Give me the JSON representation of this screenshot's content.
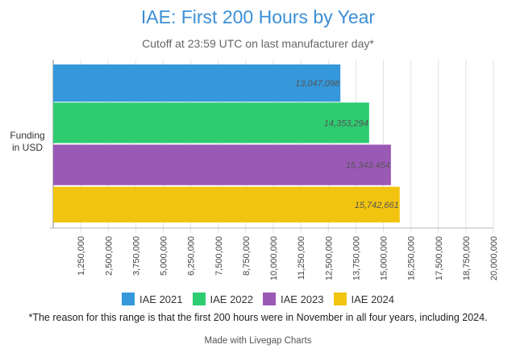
{
  "chart_data": {
    "type": "bar",
    "orientation": "horizontal",
    "title": "IAE: First 200 Hours by Year",
    "subtitle": "Cutoff at 23:59 UTC on last manufacturer day*",
    "ylabel": "Funding in USD",
    "xlim": [
      0,
      20000000
    ],
    "x_ticks": [
      "1,250,000",
      "2,500,000",
      "3,750,000",
      "5,000,000",
      "6,250,000",
      "7,500,000",
      "8,750,000",
      "10,000,000",
      "11,250,000",
      "12,500,000",
      "13,750,000",
      "15,000,000",
      "16,250,000",
      "17,500,000",
      "18,750,000",
      "20,000,000"
    ],
    "series": [
      {
        "name": "IAE 2021",
        "value": 13047098,
        "label": "13,047,098",
        "color": "#3498db"
      },
      {
        "name": "IAE 2022",
        "value": 14353294,
        "label": "14,353,294",
        "color": "#2ecc71"
      },
      {
        "name": "IAE 2023",
        "value": 15343454,
        "label": "15,343,454",
        "color": "#9b59b6"
      },
      {
        "name": "IAE 2024",
        "value": 15742661,
        "label": "15,742,661",
        "color": "#f1c40f"
      }
    ],
    "legend_position": "bottom",
    "grid": true
  },
  "footnote": "*The reason for this range is that the first 200 hours were in November in all four years, including 2024.",
  "credit": "Made with Livegap Charts"
}
